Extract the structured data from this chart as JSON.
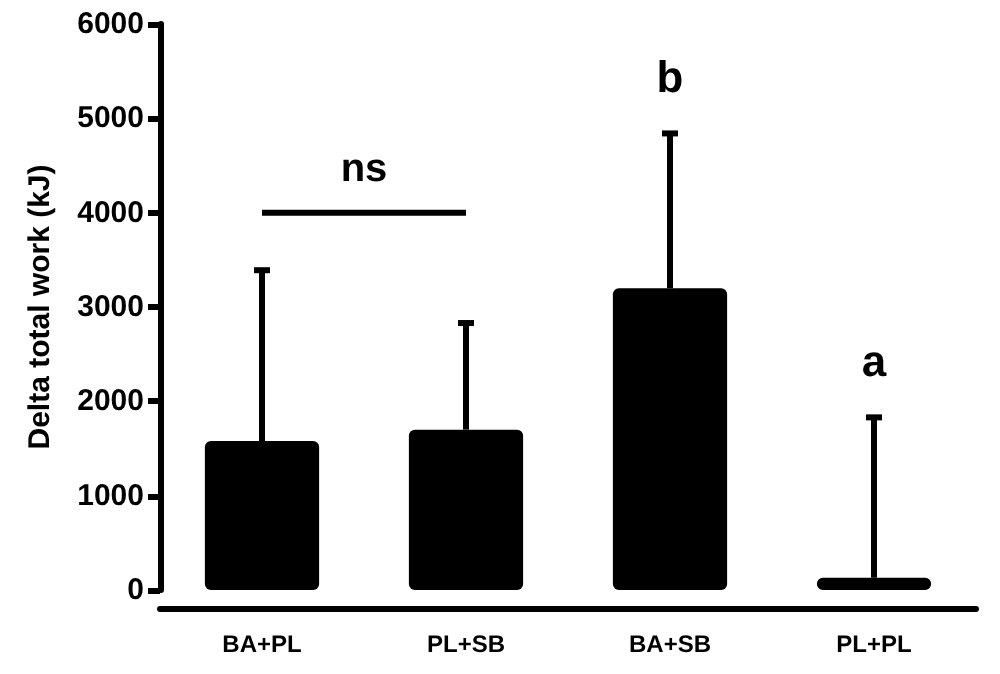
{
  "chart_data": {
    "type": "bar",
    "ylabel": "Delta total work (kJ)",
    "categories": [
      "BA+PL",
      "PL+SB",
      "BA+SB",
      "PL+PL"
    ],
    "values": [
      1580,
      1700,
      3200,
      130
    ],
    "errors": [
      [
        1580,
        3390
      ],
      [
        1700,
        2830
      ],
      [
        3200,
        4840
      ],
      [
        130,
        1830
      ]
    ],
    "color": "#000000",
    "ylim": [
      0,
      6000
    ],
    "yticks": [
      0,
      1000,
      2000,
      3000,
      4000,
      5000,
      6000
    ],
    "grid": false,
    "annotations": [
      "ns",
      "b",
      "a"
    ]
  }
}
